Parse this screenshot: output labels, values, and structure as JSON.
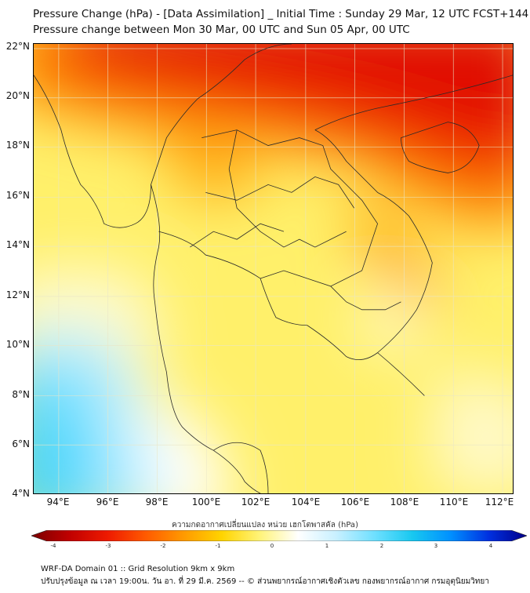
{
  "title": {
    "line1": "Pressure Change (hPa) - [Data Assimilation] _ Initial Time : Sunday 29 Mar, 12 UTC FCST+144",
    "line2": "Pressure change between Mon 30 Mar, 00 UTC and Sun 05 Apr, 00 UTC"
  },
  "axes": {
    "lat_labels": [
      "22°N",
      "20°N",
      "18°N",
      "16°N",
      "14°N",
      "12°N",
      "10°N",
      "8°N",
      "6°N",
      "4°N"
    ],
    "lon_labels": [
      "94°E",
      "96°E",
      "98°E",
      "100°E",
      "102°E",
      "104°E",
      "106°E",
      "108°E",
      "110°E",
      "112°E"
    ]
  },
  "map": {
    "lat_range": [
      4,
      22.2
    ],
    "lon_range": [
      93,
      112.4
    ],
    "gridlines": true
  },
  "colorbar": {
    "title": "ความกดอากาศเปลี่ยนแปลง หน่วย เฮกโตพาสคัล (hPa)",
    "ticks": [
      "-4",
      "-3",
      "-2",
      "-1",
      "0",
      "1",
      "2",
      "3",
      "4"
    ],
    "min": -4,
    "max": 4,
    "colors": [
      "#7a0000",
      "#c00000",
      "#ee1a00",
      "#ff5a00",
      "#ff9a00",
      "#ffd400",
      "#fff47a",
      "#ffffff",
      "#c8f0ff",
      "#6fe0ff",
      "#18c8f0",
      "#0090ff",
      "#0030e0",
      "#00008a"
    ]
  },
  "footer": {
    "line1": "WRF-DA Domain 01 :: Grid Resolution 9km x 9km",
    "line2": "ปรับปรุงข้อมูล ณ เวลา 19:00น. วัน อา. ที่ 29 มี.ค. 2569 -- © ส่วนพยากรณ์อากาศเชิงตัวเลข กองพยากรณ์อากาศ กรมอุตุนิยมวิทยา"
  }
}
